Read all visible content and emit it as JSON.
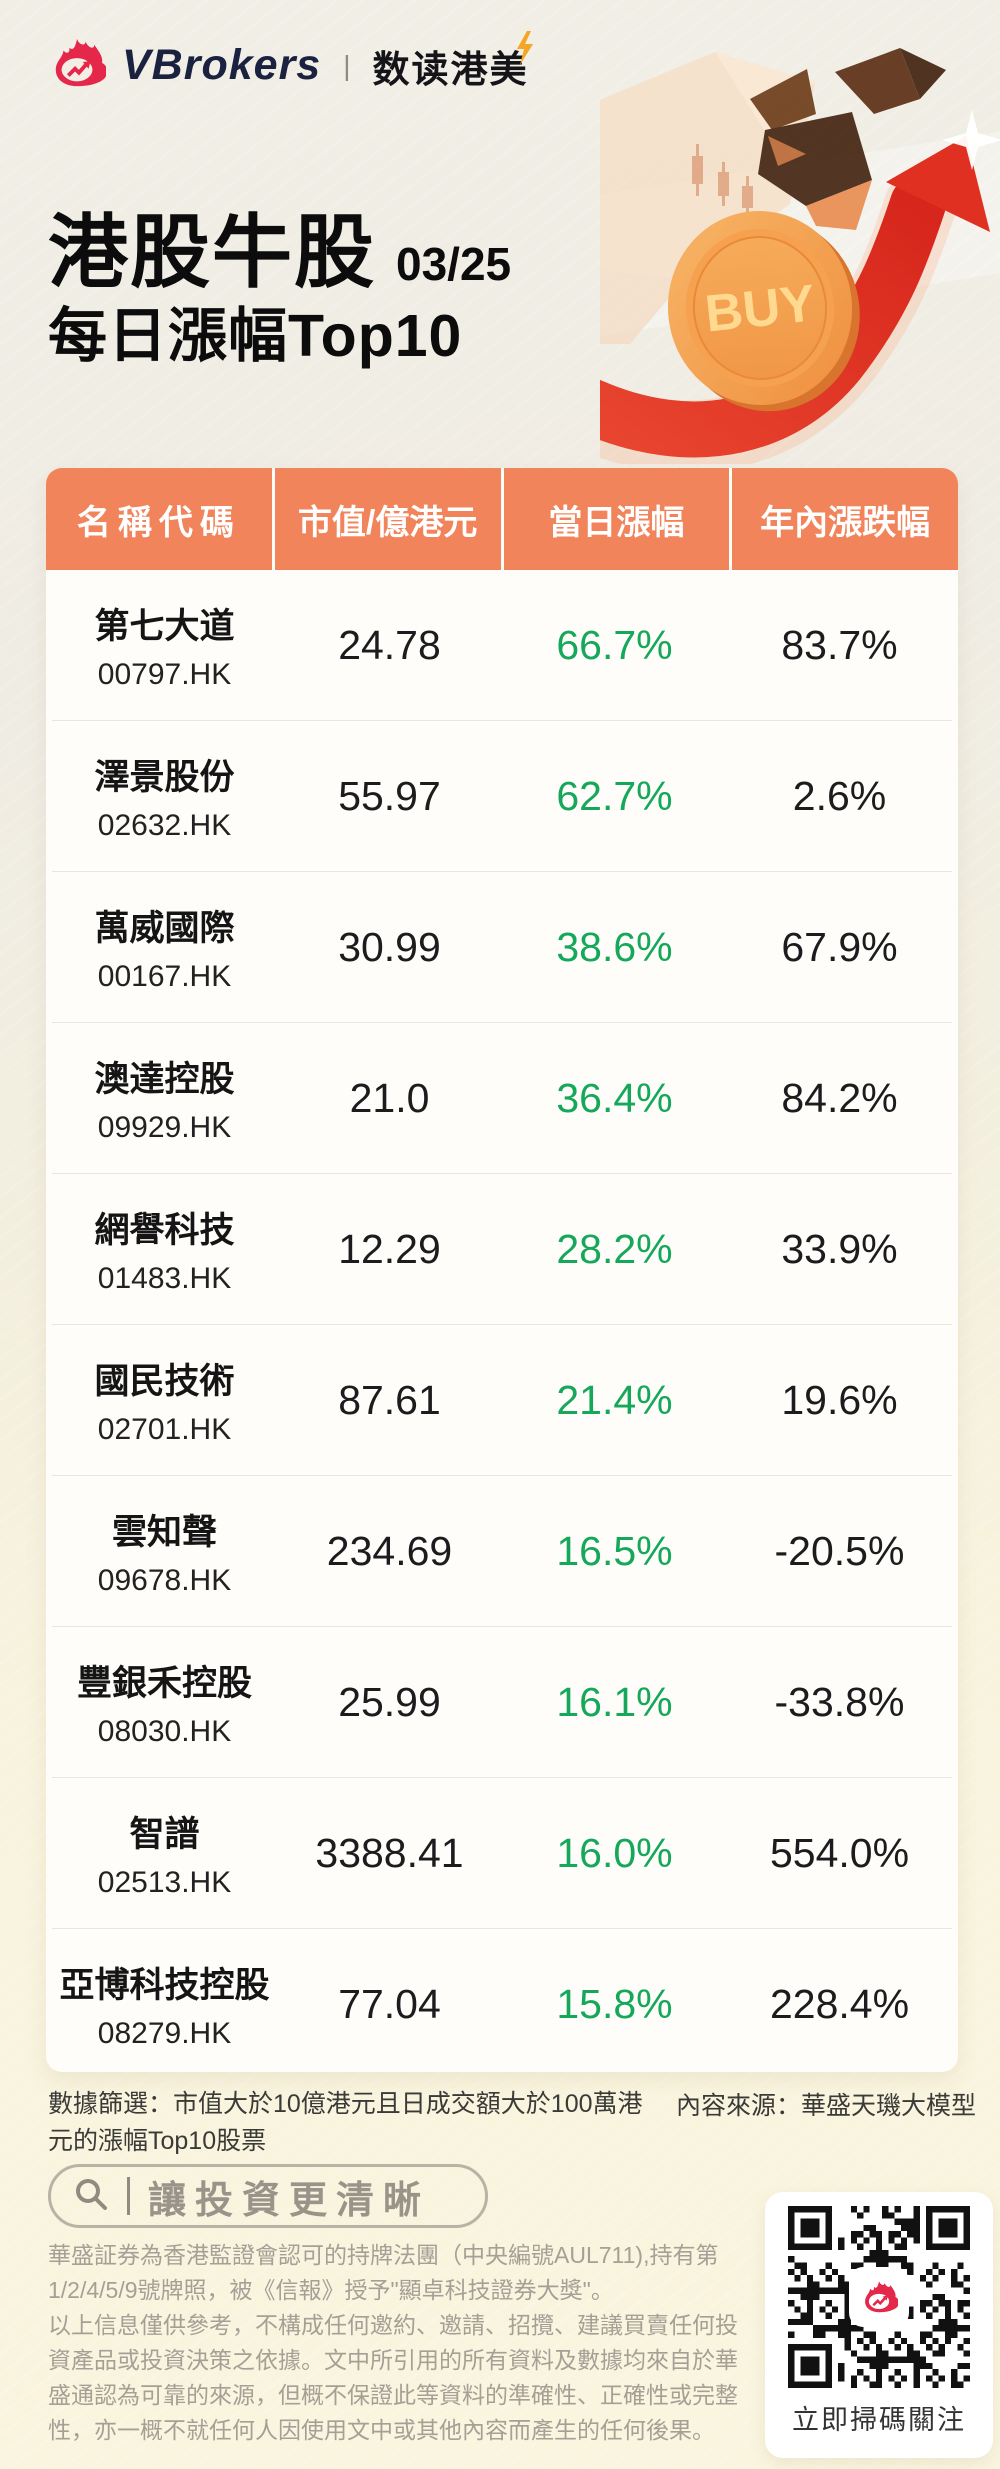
{
  "brand": {
    "name": "VBrokers",
    "divider": "|",
    "series": "数读港美"
  },
  "hero": {
    "title": "港股牛股",
    "date": "03/25",
    "subtitle": "每日漲幅Top10",
    "coin_label": "BUY"
  },
  "table": {
    "headers": [
      "名稱代碼",
      "市值/億港元",
      "當日漲幅",
      "年內漲跌幅"
    ],
    "rows": [
      {
        "name": "第七大道",
        "code": "00797.HK",
        "cap": "24.78",
        "day": "66.7%",
        "ytd": "83.7%"
      },
      {
        "name": "澤景股份",
        "code": "02632.HK",
        "cap": "55.97",
        "day": "62.7%",
        "ytd": "2.6%"
      },
      {
        "name": "萬威國際",
        "code": "00167.HK",
        "cap": "30.99",
        "day": "38.6%",
        "ytd": "67.9%"
      },
      {
        "name": "澳達控股",
        "code": "09929.HK",
        "cap": "21.0",
        "day": "36.4%",
        "ytd": "84.2%"
      },
      {
        "name": "網譽科技",
        "code": "01483.HK",
        "cap": "12.29",
        "day": "28.2%",
        "ytd": "33.9%"
      },
      {
        "name": "國民技術",
        "code": "02701.HK",
        "cap": "87.61",
        "day": "21.4%",
        "ytd": "19.6%"
      },
      {
        "name": "雲知聲",
        "code": "09678.HK",
        "cap": "234.69",
        "day": "16.5%",
        "ytd": "-20.5%"
      },
      {
        "name": "豐銀禾控股",
        "code": "08030.HK",
        "cap": "25.99",
        "day": "16.1%",
        "ytd": "-33.8%"
      },
      {
        "name": "智譜",
        "code": "02513.HK",
        "cap": "3388.41",
        "day": "16.0%",
        "ytd": "554.0%"
      },
      {
        "name": "亞博科技控股",
        "code": "08279.HK",
        "cap": "77.04",
        "day": "15.8%",
        "ytd": "228.4%"
      }
    ]
  },
  "footnotes": {
    "filter": "數據篩選：市值大於10億港元且日成交額大於100萬港元的漲幅Top10股票",
    "source": "內容來源：華盛天璣大模型"
  },
  "search": {
    "slogan": "讓投資更清晰"
  },
  "disclaimer": {
    "p1": "華盛証券為香港監證會認可的持牌法團（中央編號AUL711),持有第1/2/4/5/9號牌照，被《信報》授予\"顯卓科技證券大獎\"。",
    "p2": "以上信息僅供參考，不構成任何邀約、邀請、招攬、建議買賣任何投資產品或投資決策之依據。文中所引用的所有資料及數據均來自於華盛通認為可靠的來源，但概不保證此等資料的準確性、正確性或完整性，亦一概不就任何人因使用文中或其他內容而產生的任何後果。",
    "qr_caption": "立即掃碼關注"
  },
  "colors": {
    "header_orange": "#f1845a",
    "gain_green": "#16a85a",
    "brand_red": "#e5274a",
    "bolt_yellow": "#f5a623",
    "page_top": "#f0ece3",
    "page_bottom": "#faf5df"
  }
}
